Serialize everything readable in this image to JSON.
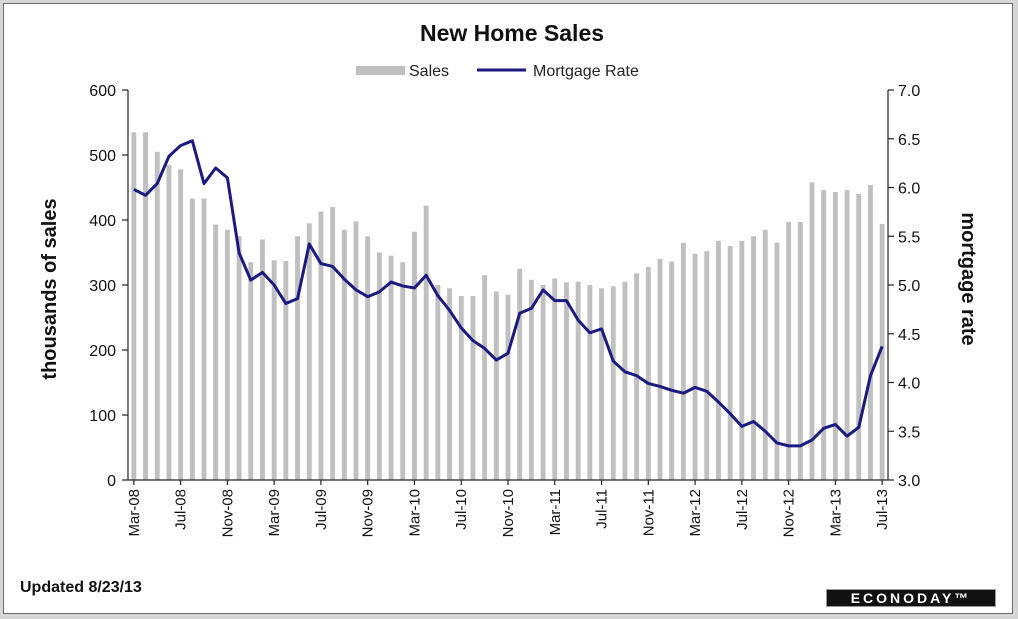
{
  "chart_data": {
    "type": "bar+line",
    "title": "New Home Sales",
    "legend": {
      "placement": "top-center",
      "entries": [
        "Sales",
        "Mortgage Rate"
      ]
    },
    "colors": {
      "sales": "#c0c0c0",
      "mortgage": "#1a1a80"
    },
    "y_left": {
      "label": "thousands of sales",
      "range": [
        0,
        600
      ],
      "ticks": [
        "0",
        "100",
        "200",
        "300",
        "400",
        "500",
        "600"
      ]
    },
    "y_right": {
      "label": "mortgage rate",
      "range": [
        3.0,
        7.0
      ],
      "ticks": [
        "3.0",
        "3.5",
        "4.0",
        "4.5",
        "5.0",
        "5.5",
        "6.0",
        "6.5",
        "7.0"
      ]
    },
    "x_tick_labels": [
      "Mar-08",
      "Jul-08",
      "Nov-08",
      "Mar-09",
      "Jul-09",
      "Nov-09",
      "Mar-10",
      "Jul-10",
      "Nov-10",
      "Mar-11",
      "Jul-11",
      "Nov-11",
      "Mar-12",
      "Jul-12",
      "Nov-12",
      "Mar-13",
      "Jul-13"
    ],
    "months": [
      "Mar-08",
      "Apr-08",
      "May-08",
      "Jun-08",
      "Jul-08",
      "Aug-08",
      "Sep-08",
      "Oct-08",
      "Nov-08",
      "Dec-08",
      "Jan-09",
      "Feb-09",
      "Mar-09",
      "Apr-09",
      "May-09",
      "Jun-09",
      "Jul-09",
      "Aug-09",
      "Sep-09",
      "Oct-09",
      "Nov-09",
      "Dec-09",
      "Jan-10",
      "Feb-10",
      "Mar-10",
      "Apr-10",
      "May-10",
      "Jun-10",
      "Jul-10",
      "Aug-10",
      "Sep-10",
      "Oct-10",
      "Nov-10",
      "Dec-10",
      "Jan-11",
      "Feb-11",
      "Mar-11",
      "Apr-11",
      "May-11",
      "Jun-11",
      "Jul-11",
      "Aug-11",
      "Sep-11",
      "Oct-11",
      "Nov-11",
      "Dec-11",
      "Jan-12",
      "Feb-12",
      "Mar-12",
      "Apr-12",
      "May-12",
      "Jun-12",
      "Jul-12",
      "Aug-12",
      "Sep-12",
      "Oct-12",
      "Nov-12",
      "Dec-12",
      "Jan-13",
      "Feb-13",
      "Mar-13",
      "Apr-13",
      "May-13",
      "Jun-13",
      "Jul-13"
    ],
    "series": [
      {
        "name": "Sales",
        "kind": "bar",
        "axis": "left",
        "values": [
          535,
          535,
          505,
          485,
          478,
          433,
          433,
          393,
          385,
          375,
          335,
          370,
          338,
          337,
          375,
          395,
          413,
          420,
          385,
          398,
          375,
          350,
          345,
          335,
          382,
          422,
          300,
          295,
          283,
          283,
          315,
          290,
          285,
          325,
          308,
          300,
          310,
          304,
          305,
          300,
          295,
          298,
          305,
          318,
          328,
          340,
          336,
          365,
          348,
          352,
          368,
          360,
          368,
          375,
          385,
          365,
          397,
          397,
          458,
          446,
          443,
          446,
          440,
          454,
          394
        ]
      },
      {
        "name": "Mortgage Rate",
        "kind": "line",
        "axis": "right",
        "values": [
          5.98,
          5.92,
          6.04,
          6.32,
          6.43,
          6.48,
          6.04,
          6.2,
          6.1,
          5.33,
          5.05,
          5.13,
          5.0,
          4.81,
          4.86,
          5.42,
          5.22,
          5.19,
          5.06,
          4.95,
          4.88,
          4.93,
          5.03,
          4.99,
          4.97,
          5.1,
          4.89,
          4.74,
          4.56,
          4.43,
          4.35,
          4.23,
          4.3,
          4.71,
          4.76,
          4.95,
          4.84,
          4.84,
          4.64,
          4.51,
          4.55,
          4.22,
          4.11,
          4.07,
          3.99,
          3.96,
          3.92,
          3.89,
          3.95,
          3.91,
          3.8,
          3.68,
          3.55,
          3.6,
          3.5,
          3.38,
          3.35,
          3.35,
          3.41,
          3.53,
          3.57,
          3.45,
          3.54,
          4.07,
          4.37
        ]
      }
    ]
  },
  "footer": {
    "updated": "Updated 8/23/13",
    "logo": "ECONODAY™"
  }
}
